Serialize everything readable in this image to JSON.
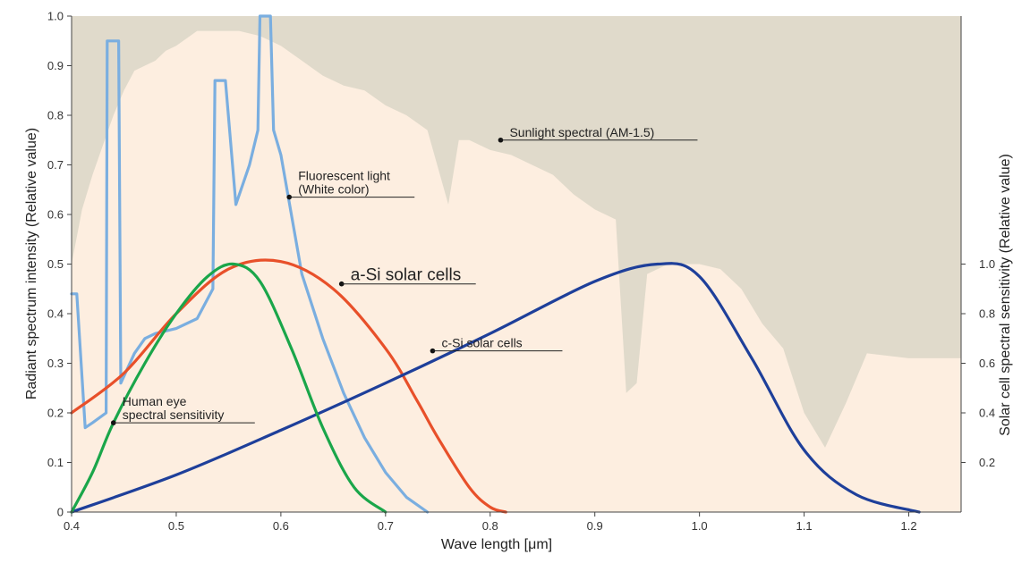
{
  "chart_data": {
    "type": "line",
    "xlabel": "Wave length [μm]",
    "ylabel_left": "Radiant spectrum intensity (Relative value)",
    "ylabel_right": "Solar cell spectral sensitivity (Relative value)",
    "xlim": [
      0.4,
      1.25
    ],
    "ylim_left": [
      0,
      1.0
    ],
    "ylim_right": [
      0,
      2.0
    ],
    "x_ticks": [
      "0.4",
      "0.5",
      "0.6",
      "0.7",
      "0.8",
      "0.9",
      "1.0",
      "1.1",
      "1.2"
    ],
    "y_ticks_left": [
      "0",
      "0.1",
      "0.2",
      "0.3",
      "0.4",
      "0.5",
      "0.6",
      "0.7",
      "0.8",
      "0.9",
      "1.0"
    ],
    "y_ticks_right": [
      "0.2",
      "0.4",
      "0.6",
      "0.8",
      "1.0"
    ],
    "colors": {
      "plot_background": "#fdeee0",
      "sunlight_fill": "#e0dacb",
      "fluorescent": "#7aaee0",
      "a_si": "#e8502a",
      "c_si": "#1e3f9a",
      "human_eye": "#1aa64a"
    },
    "series": [
      {
        "name": "Sunlight spectral (AM-1.5)",
        "kind": "area",
        "axis": "left",
        "x": [
          0.4,
          0.41,
          0.42,
          0.43,
          0.44,
          0.45,
          0.46,
          0.47,
          0.48,
          0.49,
          0.5,
          0.52,
          0.54,
          0.56,
          0.58,
          0.6,
          0.62,
          0.64,
          0.66,
          0.68,
          0.7,
          0.72,
          0.74,
          0.76,
          0.77,
          0.78,
          0.8,
          0.82,
          0.84,
          0.86,
          0.88,
          0.9,
          0.92,
          0.93,
          0.94,
          0.95,
          0.97,
          1.0,
          1.02,
          1.04,
          1.06,
          1.08,
          1.1,
          1.12,
          1.14,
          1.16,
          1.2,
          1.25
        ],
        "values": [
          0.5,
          0.61,
          0.68,
          0.74,
          0.8,
          0.85,
          0.89,
          0.9,
          0.91,
          0.93,
          0.94,
          0.97,
          0.97,
          0.97,
          0.96,
          0.94,
          0.91,
          0.88,
          0.86,
          0.85,
          0.82,
          0.8,
          0.77,
          0.62,
          0.75,
          0.75,
          0.73,
          0.72,
          0.7,
          0.68,
          0.64,
          0.61,
          0.59,
          0.24,
          0.26,
          0.48,
          0.5,
          0.5,
          0.49,
          0.45,
          0.38,
          0.33,
          0.2,
          0.13,
          0.22,
          0.32,
          0.31,
          0.31
        ]
      },
      {
        "name": "Fluorescent light (White color)",
        "kind": "line",
        "axis": "left",
        "x": [
          0.4,
          0.405,
          0.413,
          0.42,
          0.433,
          0.434,
          0.44,
          0.445,
          0.447,
          0.46,
          0.47,
          0.48,
          0.5,
          0.52,
          0.535,
          0.537,
          0.541,
          0.547,
          0.557,
          0.57,
          0.578,
          0.58,
          0.585,
          0.59,
          0.593,
          0.6,
          0.62,
          0.64,
          0.66,
          0.68,
          0.7,
          0.72,
          0.74
        ],
        "values": [
          0.44,
          0.44,
          0.17,
          0.18,
          0.2,
          0.95,
          0.95,
          0.95,
          0.26,
          0.32,
          0.35,
          0.36,
          0.37,
          0.39,
          0.45,
          0.87,
          0.87,
          0.87,
          0.62,
          0.7,
          0.77,
          1.0,
          1.0,
          1.0,
          0.77,
          0.72,
          0.48,
          0.35,
          0.24,
          0.15,
          0.08,
          0.03,
          0.0
        ]
      },
      {
        "name": "a-Si solar cells",
        "kind": "line",
        "axis": "right",
        "x": [
          0.4,
          0.45,
          0.5,
          0.55,
          0.6,
          0.65,
          0.7,
          0.73,
          0.75,
          0.78,
          0.8,
          0.815
        ],
        "values": [
          0.4,
          0.56,
          0.8,
          0.98,
          1.01,
          0.9,
          0.66,
          0.45,
          0.3,
          0.1,
          0.02,
          0.0
        ]
      },
      {
        "name": "c-Si solar cells",
        "kind": "line",
        "axis": "right",
        "x": [
          0.4,
          0.5,
          0.6,
          0.7,
          0.8,
          0.9,
          0.96,
          1.0,
          1.05,
          1.1,
          1.15,
          1.21
        ],
        "values": [
          0.0,
          0.15,
          0.33,
          0.52,
          0.72,
          0.93,
          1.0,
          0.95,
          0.62,
          0.25,
          0.07,
          0.0
        ]
      },
      {
        "name": "Human eye spectral sensitivity",
        "kind": "line",
        "axis": "right",
        "x": [
          0.4,
          0.42,
          0.44,
          0.47,
          0.5,
          0.53,
          0.555,
          0.58,
          0.61,
          0.64,
          0.67,
          0.7
        ],
        "values": [
          0.0,
          0.16,
          0.36,
          0.6,
          0.8,
          0.95,
          1.0,
          0.93,
          0.66,
          0.34,
          0.1,
          0.0
        ]
      }
    ],
    "annotations": [
      {
        "label": "Sunlight spectral (AM-1.5)",
        "x": 0.81,
        "y": 0.75
      },
      {
        "label_lines": [
          "Fluorescent light",
          "(White color)"
        ],
        "x": 0.608,
        "y": 0.635
      },
      {
        "label": "a-Si solar cells",
        "x": 0.658,
        "y": 0.46
      },
      {
        "label": "c-Si solar cells",
        "x": 0.745,
        "y": 0.325
      },
      {
        "label_lines": [
          "Human eye",
          "spectral sensitivity"
        ],
        "x": 0.44,
        "y": 0.18
      }
    ]
  }
}
